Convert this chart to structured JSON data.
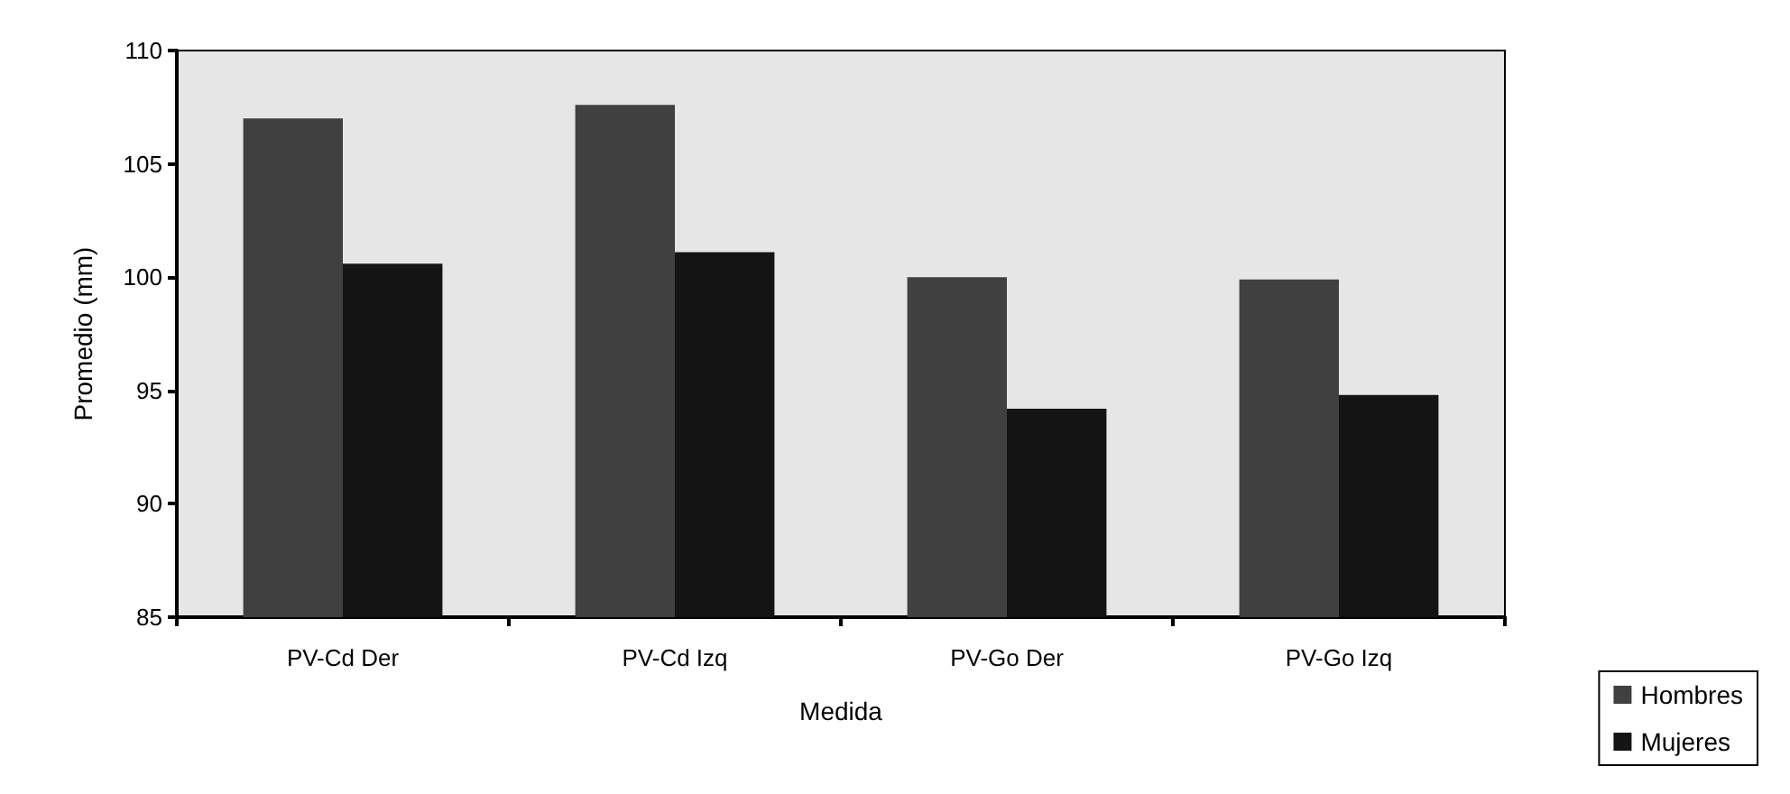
{
  "chart_data": {
    "type": "bar",
    "xlabel": "Medida",
    "ylabel": "Promedio (mm)",
    "categories": [
      "PV-Cd Der",
      "PV-Cd Izq",
      "PV-Go Der",
      "PV-Go Izq"
    ],
    "series": [
      {
        "name": "Hombres",
        "color": "#404040",
        "values": [
          107.0,
          107.6,
          100.0,
          99.9
        ]
      },
      {
        "name": "Mujeres",
        "color": "#141414",
        "values": [
          100.6,
          101.1,
          94.2,
          94.8
        ]
      }
    ],
    "ylim": [
      85,
      110
    ],
    "yticks": [
      85,
      90,
      95,
      100,
      105,
      110
    ],
    "grid": false,
    "legend": "bottom right"
  }
}
